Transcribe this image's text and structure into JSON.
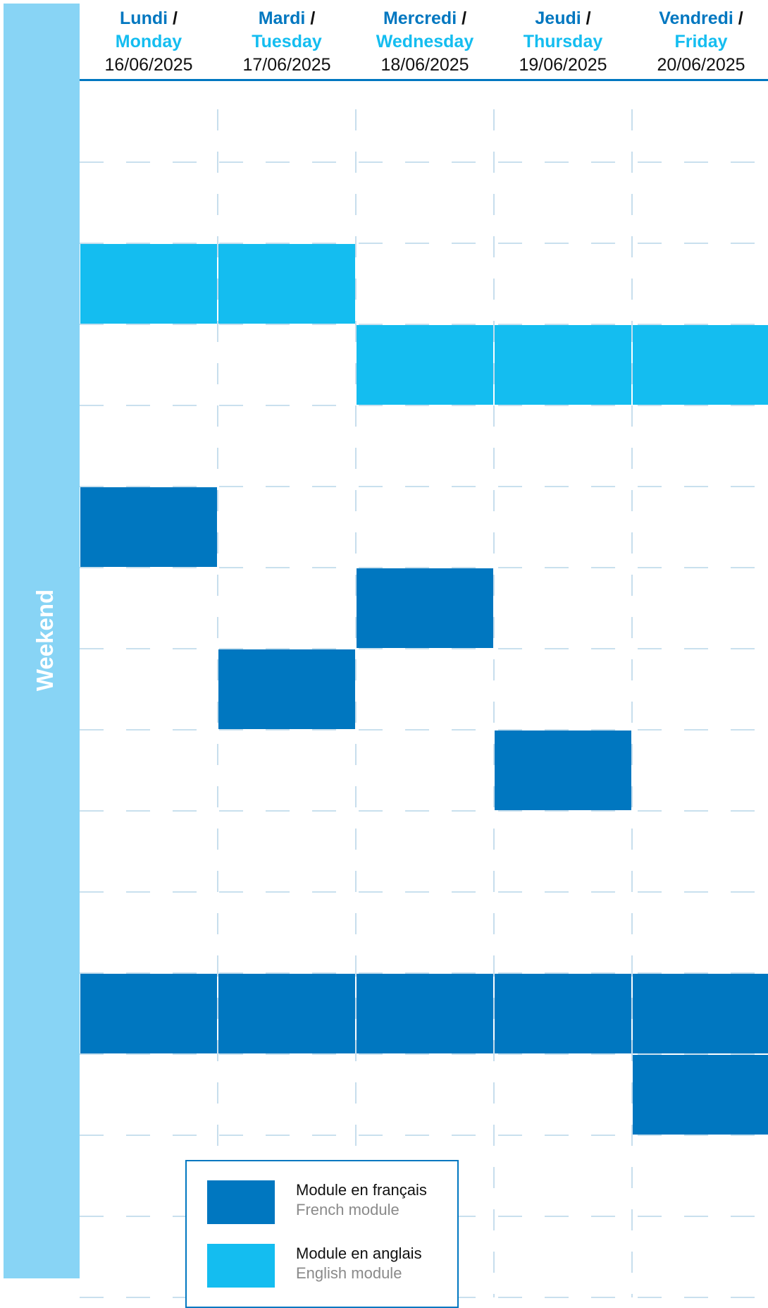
{
  "sidebar": {
    "label": "Weekend"
  },
  "days": [
    {
      "fr": "Lundi",
      "en": "Monday",
      "date": "16/06/2025"
    },
    {
      "fr": "Mardi",
      "en": "Tuesday",
      "date": "17/06/2025"
    },
    {
      "fr": "Mercredi",
      "en": "Wednesday",
      "date": "18/06/2025"
    },
    {
      "fr": "Jeudi",
      "en": "Thursday",
      "date": "19/06/2025"
    },
    {
      "fr": "Vendredi",
      "en": "Friday",
      "date": "20/06/2025"
    }
  ],
  "separator": "/",
  "schedule": [
    {
      "day": 0,
      "start_slot": 2,
      "slots": 1,
      "lang": "en"
    },
    {
      "day": 1,
      "start_slot": 2,
      "slots": 1,
      "lang": "en"
    },
    {
      "day": 2,
      "start_slot": 3,
      "slots": 1,
      "lang": "en"
    },
    {
      "day": 3,
      "start_slot": 3,
      "slots": 1,
      "lang": "en"
    },
    {
      "day": 4,
      "start_slot": 3,
      "slots": 1,
      "lang": "en"
    },
    {
      "day": 0,
      "start_slot": 5,
      "slots": 1,
      "lang": "fr"
    },
    {
      "day": 2,
      "start_slot": 6,
      "slots": 1,
      "lang": "fr"
    },
    {
      "day": 1,
      "start_slot": 7,
      "slots": 1,
      "lang": "fr"
    },
    {
      "day": 3,
      "start_slot": 8,
      "slots": 1,
      "lang": "fr"
    },
    {
      "day": 0,
      "start_slot": 11,
      "slots": 1,
      "lang": "fr"
    },
    {
      "day": 1,
      "start_slot": 11,
      "slots": 1,
      "lang": "fr"
    },
    {
      "day": 2,
      "start_slot": 11,
      "slots": 1,
      "lang": "fr"
    },
    {
      "day": 3,
      "start_slot": 11,
      "slots": 1,
      "lang": "fr"
    },
    {
      "day": 4,
      "start_slot": 11,
      "slots": 1,
      "lang": "fr"
    },
    {
      "day": 4,
      "start_slot": 12,
      "slots": 1,
      "lang": "fr"
    }
  ],
  "legend": {
    "french": {
      "main": "Module en français",
      "sub": "French module"
    },
    "english": {
      "main": "Module en anglais",
      "sub": "English module"
    }
  },
  "colors": {
    "french": "#0077c0",
    "english": "#14bdf0",
    "weekend": "#88d4f5",
    "grid": "#a9cde3"
  }
}
